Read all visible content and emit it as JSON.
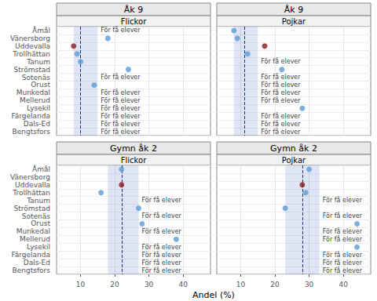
{
  "chart_data": [
    {
      "type": "scatter",
      "title": "Åk 9",
      "subtitle": "Flickor",
      "categories": [
        "Åmål",
        "Vänersborg",
        "Uddevalla",
        "Trollhättan",
        "Tanum",
        "Strömstad",
        "Sotenäs",
        "Orust",
        "Munkedal",
        "Mellerud",
        "Lysekil",
        "Färgelanda",
        "Dals-Ed",
        "Bengtsfors"
      ],
      "values": [
        null,
        18,
        8,
        9,
        10,
        24,
        null,
        14,
        null,
        null,
        null,
        null,
        null,
        null
      ],
      "colors": [
        "#5b9bd5",
        "#8b1a1a",
        "#5b9bd5",
        "#5b9bd5",
        "#5b9bd5",
        "#5b9bd5"
      ],
      "band": [
        8,
        15
      ],
      "reference_line": 10,
      "annotations": [
        {
          "text": "För få elever",
          "category": "Åmål"
        },
        {
          "text": "För få elever",
          "category": "Sotenäs"
        },
        {
          "text": "För få elever",
          "category": "Munkedal"
        },
        {
          "text": "För få elever",
          "category": "Mellerud"
        },
        {
          "text": "För få elever",
          "category": "Lysekil"
        },
        {
          "text": "För få elever",
          "category": "Färgelanda"
        },
        {
          "text": "För få elever",
          "category": "Dals-Ed"
        },
        {
          "text": "För få elever",
          "category": "Bengtsfors"
        }
      ],
      "xlim": [
        3,
        48
      ],
      "xticks": [
        10,
        20,
        30,
        40
      ],
      "grid": true,
      "tick_labels": "y"
    },
    {
      "type": "scatter",
      "title": "Åk 9",
      "subtitle": "Pojkar",
      "categories": [
        "Åmål",
        "Vänersborg",
        "Uddevalla",
        "Trollhättan",
        "Tanum",
        "Strömstad",
        "Sotenäs",
        "Orust",
        "Munkedal",
        "Mellerud",
        "Lysekil",
        "Färgelanda",
        "Dals-Ed",
        "Bengtsfors"
      ],
      "values": [
        8,
        9,
        17,
        12,
        null,
        22,
        null,
        null,
        null,
        null,
        28,
        null,
        null,
        null
      ],
      "colors": [
        "#5b9bd5",
        "#5b9bd5",
        "#8b1a1a",
        "#5b9bd5",
        "#5b9bd5",
        "#5b9bd5"
      ],
      "band": [
        8,
        15
      ],
      "reference_line": 11,
      "annotations": [
        {
          "text": "För få elever",
          "category": "Tanum"
        },
        {
          "text": "För få elever",
          "category": "Sotenäs"
        },
        {
          "text": "För få elever",
          "category": "Orust"
        },
        {
          "text": "För få elever",
          "category": "Munkedal"
        },
        {
          "text": "För få elever",
          "category": "Mellerud"
        },
        {
          "text": "För få elever",
          "category": "Färgelanda"
        },
        {
          "text": "För få elever",
          "category": "Dals-Ed"
        },
        {
          "text": "För få elever",
          "category": "Bengtsfors"
        }
      ],
      "xlim": [
        3,
        48
      ],
      "xticks": [
        10,
        20,
        30,
        40
      ],
      "grid": true,
      "tick_labels": false
    },
    {
      "type": "scatter",
      "title": "Gymn åk 2",
      "subtitle": "Flickor",
      "categories": [
        "Åmål",
        "Vänersborg",
        "Uddevalla",
        "Trollhättan",
        "Tanum",
        "Strömstad",
        "Sotenäs",
        "Orust",
        "Munkedal",
        "Mellerud",
        "Lysekil",
        "Färgelanda",
        "Dals-Ed",
        "Bengtsfors"
      ],
      "values": [
        22,
        null,
        22,
        16,
        null,
        27,
        null,
        28,
        null,
        38,
        null,
        null,
        null,
        null
      ],
      "colors": [
        "#5b9bd5",
        "#8b1a1a",
        "#5b9bd5",
        "#5b9bd5",
        "#5b9bd5",
        "#5b9bd5"
      ],
      "band": [
        18,
        27
      ],
      "reference_line": 22,
      "annotations": [
        {
          "text": "För få elever",
          "category": "Tanum"
        },
        {
          "text": "För få elever",
          "category": "Sotenäs"
        },
        {
          "text": "För få elever",
          "category": "Munkedal"
        },
        {
          "text": "För få elever",
          "category": "Lysekil"
        },
        {
          "text": "För få elever",
          "category": "Färgelanda"
        },
        {
          "text": "För få elever",
          "category": "Dals-Ed"
        },
        {
          "text": "För få elever",
          "category": "Bengtsfors"
        }
      ],
      "xlim": [
        3,
        48
      ],
      "xticks": [
        10,
        20,
        30,
        40
      ],
      "xlabel": "Andel (%)",
      "grid": true
    },
    {
      "type": "scatter",
      "title": "Gymn åk 2",
      "subtitle": "Pojkar",
      "categories": [
        "Åmål",
        "Vänersborg",
        "Uddevalla",
        "Trollhättan",
        "Tanum",
        "Strömstad",
        "Sotenäs",
        "Orust",
        "Munkedal",
        "Mellerud",
        "Lysekil",
        "Färgelanda",
        "Dals-Ed",
        "Bengtsfors"
      ],
      "values": [
        30,
        null,
        28,
        29,
        null,
        23,
        null,
        44,
        null,
        null,
        44,
        null,
        null,
        null
      ],
      "colors": [
        "#5b9bd5",
        "#8b1a1a",
        "#5b9bd5",
        "#5b9bd5",
        "#5b9bd5",
        "#5b9bd5"
      ],
      "band": [
        23,
        33
      ],
      "reference_line": 28,
      "annotations": [
        {
          "text": "För få elever",
          "category": "Tanum"
        },
        {
          "text": "För få elever",
          "category": "Sotenäs"
        },
        {
          "text": "För få elever",
          "category": "Munkedal"
        },
        {
          "text": "För få elever",
          "category": "Mellerud"
        },
        {
          "text": "För få elever",
          "category": "Färgelanda"
        },
        {
          "text": "För få elever",
          "category": "Dals-Ed"
        },
        {
          "text": "För få elever",
          "category": "Bengtsfors"
        }
      ],
      "xlim": [
        3,
        48
      ],
      "xticks": [
        10,
        20,
        30,
        40
      ],
      "grid": true,
      "tick_labels": "x"
    }
  ]
}
